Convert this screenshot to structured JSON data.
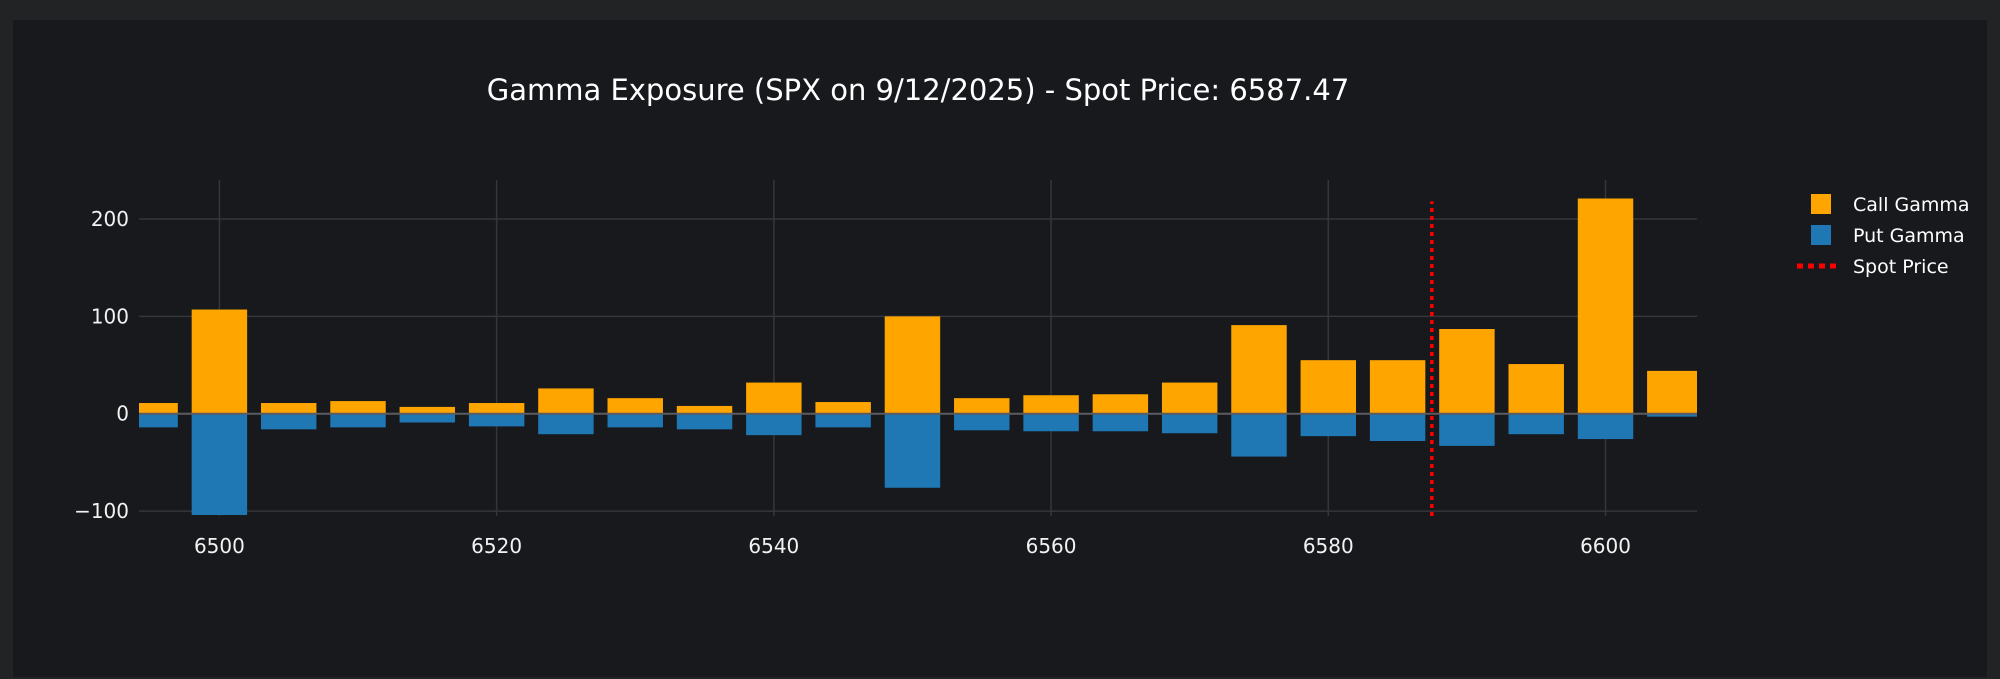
{
  "chart_data": {
    "type": "bar",
    "title": "Gamma Exposure (SPX on 9/12/2025) - Spot Price: 6587.47",
    "xlabel": "",
    "ylabel": "",
    "xlim": [
      6494.2,
      6606.6
    ],
    "ylim": [
      -105,
      240
    ],
    "x_ticks": [
      6500,
      6520,
      6540,
      6560,
      6580,
      6600
    ],
    "y_ticks": [
      -100,
      0,
      100,
      200
    ],
    "x_tick_labels": [
      "6500",
      "6520",
      "6540",
      "6560",
      "6580",
      "6600"
    ],
    "y_tick_labels": [
      "−100",
      "0",
      "100",
      "200"
    ],
    "grid": true,
    "legend_position": "top-right",
    "x": [
      6495,
      6500,
      6505,
      6510,
      6515,
      6520,
      6525,
      6530,
      6535,
      6540,
      6545,
      6550,
      6555,
      6560,
      6565,
      6570,
      6575,
      6580,
      6585,
      6590,
      6595,
      6600,
      6605
    ],
    "series": [
      {
        "name": "Call Gamma",
        "color": "#ffa500",
        "values": [
          11,
          107,
          11,
          13,
          7,
          11,
          26,
          16,
          8,
          32,
          12,
          100,
          16,
          19,
          20,
          32,
          91,
          55,
          55,
          87,
          51,
          221,
          44
        ]
      },
      {
        "name": "Put Gamma",
        "color": "#1f77b4",
        "values": [
          -14,
          -104,
          -16,
          -14,
          -9,
          -13,
          -21,
          -14,
          -16,
          -22,
          -14,
          -76,
          -17,
          -18,
          -18,
          -20,
          -44,
          -23,
          -28,
          -33,
          -21,
          -26,
          -3
        ]
      }
    ],
    "spot_price": {
      "name": "Spot Price",
      "value": 6587.47,
      "color": "#ff0000",
      "y_range": [
        -105,
        218
      ]
    }
  }
}
